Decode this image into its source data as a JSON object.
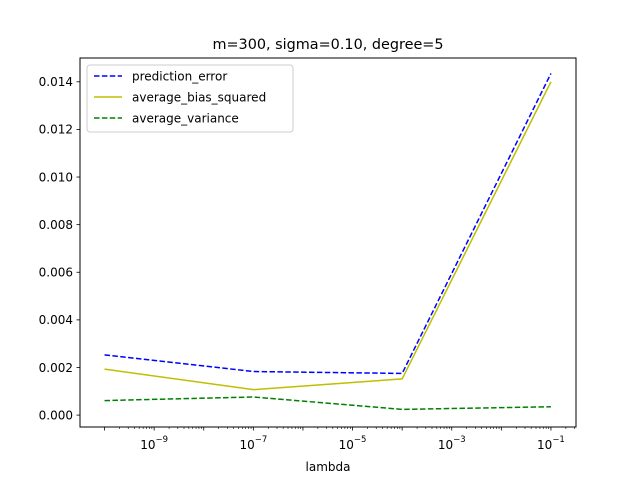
{
  "chart_data": {
    "type": "line",
    "title": "m=300, sigma=0.10, degree=5",
    "xlabel": "lambda",
    "ylabel": "",
    "xscale": "log",
    "x": [
      1e-10,
      1e-07,
      0.0001,
      0.1
    ],
    "xlim": [
      3.2e-11,
      0.32
    ],
    "ylim": [
      -0.0005,
      0.015
    ],
    "xticks": [
      {
        "value": 1e-09,
        "base": "10",
        "exp": "−9"
      },
      {
        "value": 1e-07,
        "base": "10",
        "exp": "−7"
      },
      {
        "value": 1e-05,
        "base": "10",
        "exp": "−5"
      },
      {
        "value": 0.001,
        "base": "10",
        "exp": "−3"
      },
      {
        "value": 0.1,
        "base": "10",
        "exp": "−1"
      }
    ],
    "yticks": [
      {
        "value": 0.0,
        "label": "0.000"
      },
      {
        "value": 0.002,
        "label": "0.002"
      },
      {
        "value": 0.004,
        "label": "0.004"
      },
      {
        "value": 0.006,
        "label": "0.006"
      },
      {
        "value": 0.008,
        "label": "0.008"
      },
      {
        "value": 0.01,
        "label": "0.010"
      },
      {
        "value": 0.012,
        "label": "0.012"
      },
      {
        "value": 0.014,
        "label": "0.014"
      }
    ],
    "series": [
      {
        "name": "prediction_error",
        "values": [
          0.00253,
          0.00183,
          0.00175,
          0.01435
        ],
        "color": "#0000ff",
        "dash": "dashed"
      },
      {
        "name": "average_bias_squared",
        "values": [
          0.00193,
          0.00107,
          0.00152,
          0.014
        ],
        "color": "#bfbf00",
        "dash": "solid"
      },
      {
        "name": "average_variance",
        "values": [
          0.00061,
          0.00076,
          0.00024,
          0.00035
        ],
        "color": "#008000",
        "dash": "dashed"
      }
    ],
    "legend": "top-left",
    "grid": false
  }
}
